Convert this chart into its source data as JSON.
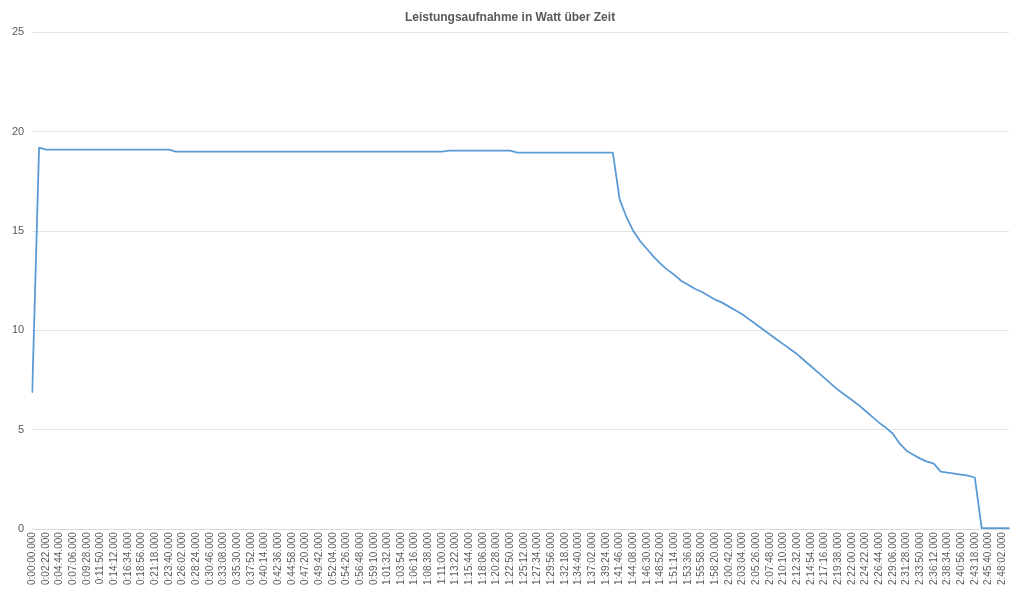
{
  "chart_data": {
    "type": "line",
    "title": "Leistungsaufnahme in Watt über Zeit",
    "categories": [
      "0:00:00.000",
      null,
      "0:02:22.000",
      null,
      "0:04:44.000",
      null,
      "0:07:06.000",
      null,
      "0:09:28.000",
      null,
      "0:11:50.000",
      null,
      "0:14:12.000",
      null,
      "0:16:34.000",
      null,
      "0:18:56.000",
      null,
      "0:21:18.000",
      null,
      "0:23:40.000",
      null,
      "0:26:02.000",
      null,
      "0:28:24.000",
      null,
      "0:30:46.000",
      null,
      "0:33:08.000",
      null,
      "0:35:30.000",
      null,
      "0:37:52.000",
      null,
      "0:40:14.000",
      null,
      "0:42:36.000",
      null,
      "0:44:58.000",
      null,
      "0:47:20.000",
      null,
      "0:49:42.000",
      null,
      "0:52:04.000",
      null,
      "0:54:26.000",
      null,
      "0:56:48.000",
      null,
      "0:59:10.000",
      null,
      "1:01:32.000",
      null,
      "1:03:54.000",
      null,
      "1:06:16.000",
      null,
      "1:08:38.000",
      null,
      "1:11:00.000",
      null,
      "1:13:22.000",
      null,
      "1:15:44.000",
      null,
      "1:18:06.000",
      null,
      "1:20:28.000",
      null,
      "1:22:50.000",
      null,
      "1:25:12.000",
      null,
      "1:27:34.000",
      null,
      "1:29:56.000",
      null,
      "1:32:18.000",
      null,
      "1:34:40.000",
      null,
      "1:37:02.000",
      null,
      "1:39:24.000",
      null,
      "1:41:46.000",
      null,
      "1:44:08.000",
      null,
      "1:46:30.000",
      null,
      "1:48:52.000",
      null,
      "1:51:14.000",
      null,
      "1:53:36.000",
      null,
      "1:55:58.000",
      null,
      "1:58:20.000",
      null,
      "2:00:42.000",
      null,
      "2:03:04.000",
      null,
      "2:05:26.000",
      null,
      "2:07:48.000",
      null,
      "2:10:10.000",
      null,
      "2:12:32.000",
      null,
      "2:14:54.000",
      null,
      "2:17:16.000",
      null,
      "2:19:38.000",
      null,
      "2:22:00.000",
      null,
      "2:24:22.000",
      null,
      "2:26:44.000",
      null,
      "2:29:06.000",
      null,
      "2:31:28.000",
      null,
      "2:33:50.000",
      null,
      "2:36:12.000",
      null,
      "2:38:34.000",
      null,
      "2:40:56.000",
      null,
      "2:43:18.000",
      null,
      "2:45:40.000",
      null,
      "2:48:02.000",
      null
    ],
    "series": [
      {
        "color": "#5b9bd5",
        "values": [
          6.9,
          19.2,
          19.1,
          19.1,
          19.1,
          19.1,
          19.1,
          19.1,
          19.1,
          19.1,
          19.1,
          19.1,
          19.1,
          19.1,
          19.1,
          19.1,
          19.1,
          19.1,
          19.1,
          19.1,
          19.1,
          19.0,
          19.0,
          19.0,
          19.0,
          19.0,
          19.0,
          19.0,
          19.0,
          19.0,
          19.0,
          19.0,
          19.0,
          19.0,
          19.0,
          19.0,
          19.0,
          19.0,
          19.0,
          19.0,
          19.0,
          19.0,
          19.0,
          19.0,
          19.0,
          19.0,
          19.0,
          19.0,
          19.0,
          19.0,
          19.0,
          19.0,
          19.0,
          19.0,
          19.0,
          19.0,
          19.0,
          19.0,
          19.0,
          19.0,
          19.0,
          19.05,
          19.05,
          19.05,
          19.05,
          19.05,
          19.05,
          19.05,
          19.05,
          19.05,
          19.05,
          18.95,
          18.95,
          18.95,
          18.95,
          18.95,
          18.95,
          18.95,
          18.95,
          18.95,
          18.95,
          18.95,
          18.95,
          18.95,
          18.95,
          18.95,
          16.6,
          15.7,
          15.0,
          14.5,
          14.1,
          13.7,
          13.35,
          13.05,
          12.8,
          12.5,
          12.3,
          12.1,
          11.95,
          11.75,
          11.55,
          11.4,
          11.2,
          11.0,
          10.8,
          10.55,
          10.3,
          10.05,
          9.8,
          9.55,
          9.3,
          9.05,
          8.8,
          8.5,
          8.2,
          7.9,
          7.6,
          7.3,
          7.0,
          6.75,
          6.5,
          6.24,
          5.95,
          5.65,
          5.35,
          5.1,
          4.8,
          4.3,
          3.95,
          3.75,
          3.55,
          3.4,
          3.3,
          2.9,
          2.85,
          2.8,
          2.75,
          2.7,
          2.6,
          0.05,
          0.05,
          0.05,
          0.05,
          0.05
        ]
      }
    ],
    "ylim": [
      0,
      25
    ],
    "yticks": [
      0,
      5,
      10,
      15,
      20,
      25
    ],
    "grid": "y",
    "legend": false,
    "marker": "none",
    "line_style": "solid"
  }
}
